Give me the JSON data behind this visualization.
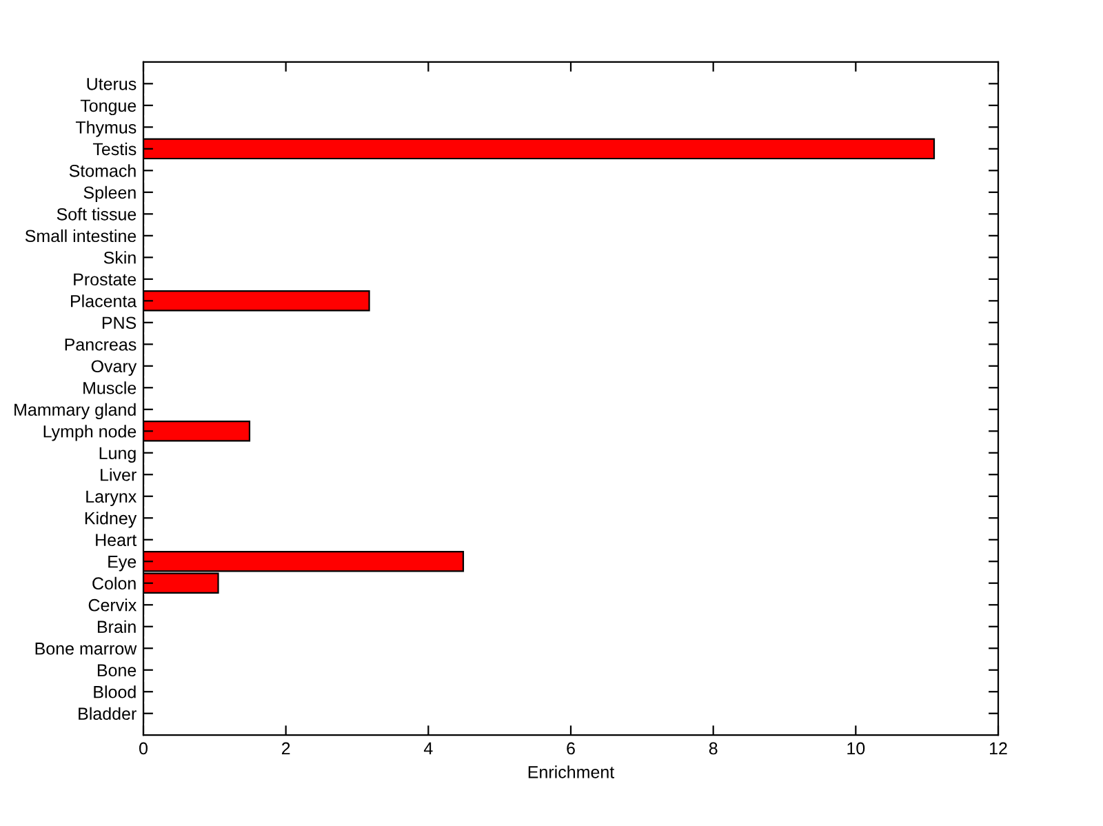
{
  "chart_data": {
    "type": "bar",
    "orientation": "horizontal",
    "xlabel": "Enrichment",
    "categories": [
      "Uterus",
      "Tongue",
      "Thymus",
      "Testis",
      "Stomach",
      "Spleen",
      "Soft tissue",
      "Small intestine",
      "Skin",
      "Prostate",
      "Placenta",
      "PNS",
      "Pancreas",
      "Ovary",
      "Muscle",
      "Mammary gland",
      "Lymph node",
      "Lung",
      "Liver",
      "Larynx",
      "Kidney",
      "Heart",
      "Eye",
      "Colon",
      "Cervix",
      "Brain",
      "Bone marrow",
      "Bone",
      "Blood",
      "Bladder"
    ],
    "values": [
      0,
      0,
      0,
      11.1,
      0,
      0,
      0,
      0,
      0,
      0,
      3.17,
      0,
      0,
      0,
      0,
      0,
      1.49,
      0,
      0,
      0,
      0,
      0,
      4.49,
      1.05,
      0,
      0,
      0,
      0,
      0,
      0
    ],
    "color": "#ff0000",
    "xlim": [
      0,
      12
    ],
    "xticks": [
      0,
      2,
      4,
      6,
      8,
      10,
      12
    ],
    "grid": false
  }
}
